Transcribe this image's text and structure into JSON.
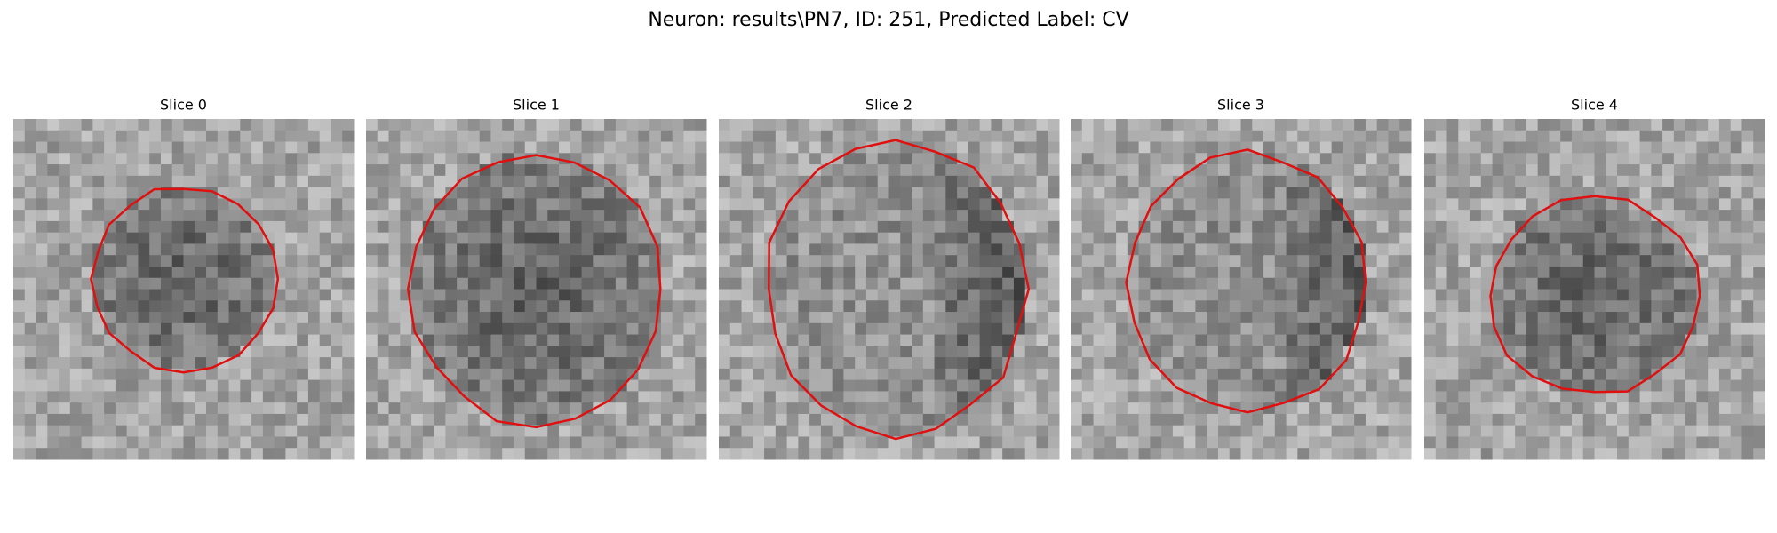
{
  "title": "Neuron: results\\PN7, ID: 251, Predicted Label: CV",
  "panels": [
    {
      "title": "Slice 0"
    },
    {
      "title": "Slice 1"
    },
    {
      "title": "Slice 2"
    },
    {
      "title": "Slice 3"
    },
    {
      "title": "Slice 4"
    }
  ]
}
